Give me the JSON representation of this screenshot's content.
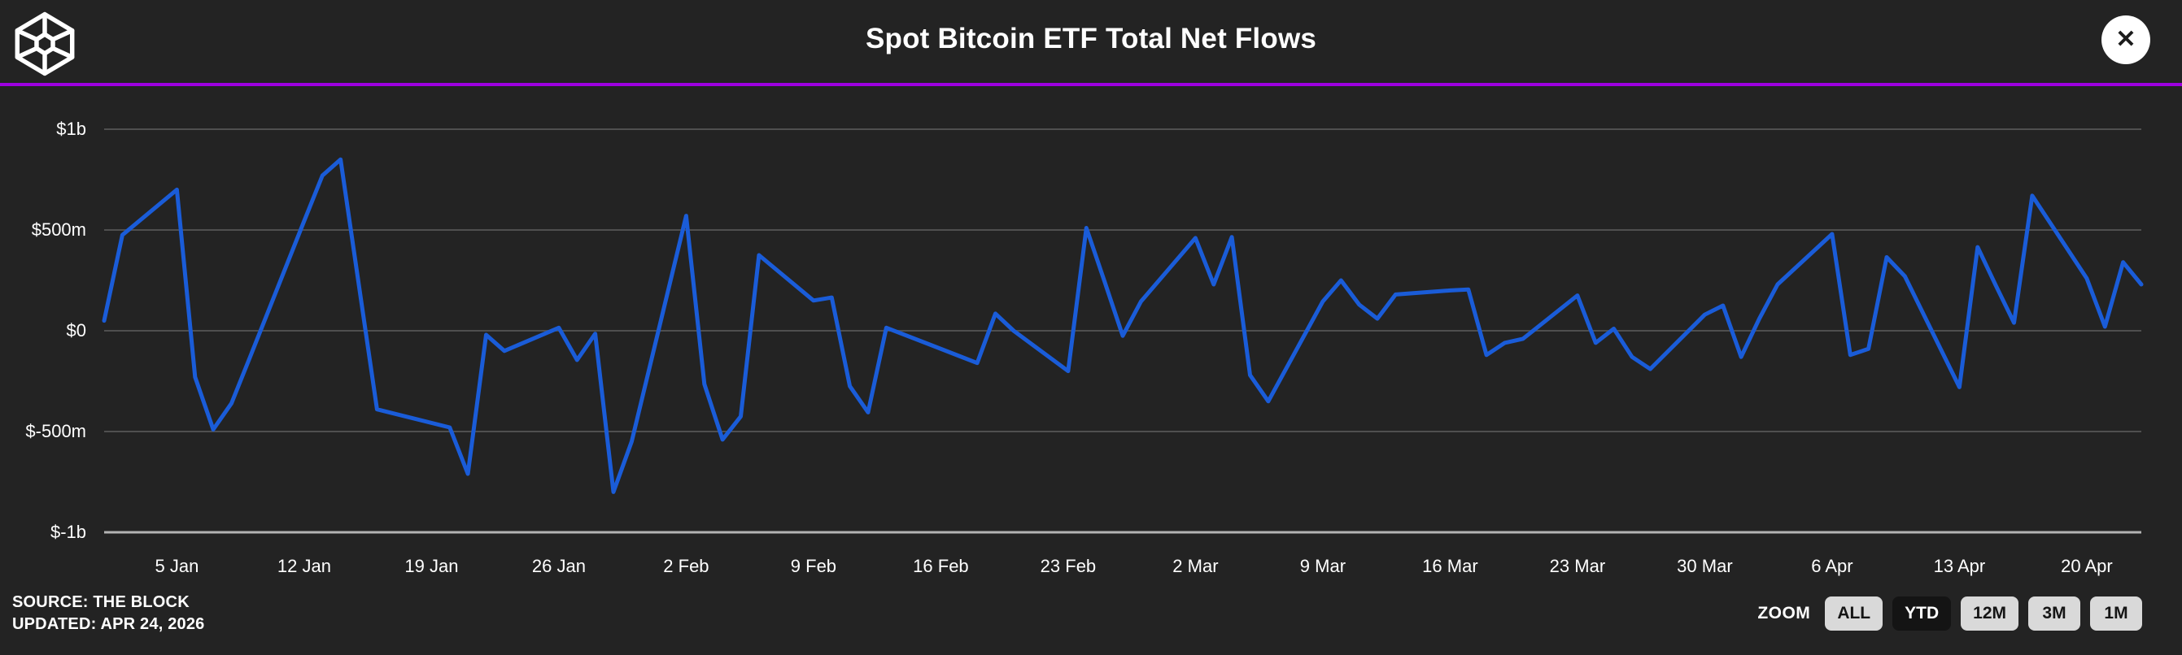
{
  "header": {
    "title": "Spot Bitcoin ETF Total Net Flows",
    "close_glyph": "✕"
  },
  "footer": {
    "source": "SOURCE: THE BLOCK",
    "updated": "UPDATED: APR 24, 2026"
  },
  "zoom": {
    "label": "ZOOM",
    "active": "YTD",
    "buttons": [
      {
        "label": "ALL"
      },
      {
        "label": "YTD"
      },
      {
        "label": "12M"
      },
      {
        "label": "3M"
      },
      {
        "label": "1M"
      }
    ]
  },
  "colors": {
    "background": "#232323",
    "accent_purple": "#9d00e0",
    "line_blue": "#1a5cd8",
    "grid": "#4f4f4f",
    "axis": "#b3b3b3",
    "text": "#ffffff",
    "button_bg": "#d9d9d9",
    "button_active_bg": "#141414"
  },
  "chart_data": {
    "type": "line",
    "title": "Spot Bitcoin ETF Total Net Flows",
    "xlabel": "",
    "ylabel": "",
    "unit": "$m",
    "ylim": [
      -1000,
      1000
    ],
    "grid": "horizontal",
    "legend": "none",
    "x_range": [
      "2026-01-01",
      "2026-04-23"
    ],
    "y_ticks": [
      {
        "label": "$1b",
        "value": 1000
      },
      {
        "label": "$500m",
        "value": 500
      },
      {
        "label": "$0",
        "value": 0
      },
      {
        "label": "$-500m",
        "value": -500
      },
      {
        "label": "$-1b",
        "value": -1000
      }
    ],
    "x_ticks": [
      {
        "label": "5 Jan",
        "day": 4
      },
      {
        "label": "12 Jan",
        "day": 11
      },
      {
        "label": "19 Jan",
        "day": 18
      },
      {
        "label": "26 Jan",
        "day": 25
      },
      {
        "label": "2 Feb",
        "day": 32
      },
      {
        "label": "9 Feb",
        "day": 39
      },
      {
        "label": "16 Feb",
        "day": 46
      },
      {
        "label": "23 Feb",
        "day": 53
      },
      {
        "label": "2 Mar",
        "day": 60
      },
      {
        "label": "9 Mar",
        "day": 67
      },
      {
        "label": "16 Mar",
        "day": 74
      },
      {
        "label": "23 Mar",
        "day": 81
      },
      {
        "label": "30 Mar",
        "day": 88
      },
      {
        "label": "6 Apr",
        "day": 95
      },
      {
        "label": "13 Apr",
        "day": 102
      },
      {
        "label": "20 Apr",
        "day": 109
      }
    ],
    "points": [
      [
        "2026-01-01",
        50
      ],
      [
        "2026-01-02",
        475
      ],
      [
        "2026-01-05",
        700
      ],
      [
        "2026-01-06",
        -230
      ],
      [
        "2026-01-07",
        -490
      ],
      [
        "2026-01-08",
        -360
      ],
      [
        "2026-01-09",
        -135
      ],
      [
        "2026-01-12",
        545
      ],
      [
        "2026-01-13",
        770
      ],
      [
        "2026-01-14",
        850
      ],
      [
        "2026-01-15",
        230
      ],
      [
        "2026-01-16",
        -390
      ],
      [
        "2026-01-20",
        -480
      ],
      [
        "2026-01-21",
        -710
      ],
      [
        "2026-01-22",
        -20
      ],
      [
        "2026-01-23",
        -100
      ],
      [
        "2026-01-26",
        15
      ],
      [
        "2026-01-27",
        -145
      ],
      [
        "2026-01-28",
        -15
      ],
      [
        "2026-01-29",
        -800
      ],
      [
        "2026-01-30",
        -550
      ],
      [
        "2026-02-02",
        570
      ],
      [
        "2026-02-03",
        -265
      ],
      [
        "2026-02-04",
        -540
      ],
      [
        "2026-02-05",
        -425
      ],
      [
        "2026-02-06",
        375
      ],
      [
        "2026-02-09",
        150
      ],
      [
        "2026-02-10",
        165
      ],
      [
        "2026-02-11",
        -275
      ],
      [
        "2026-02-12",
        -405
      ],
      [
        "2026-02-13",
        15
      ],
      [
        "2026-02-17",
        -125
      ],
      [
        "2026-02-18",
        -160
      ],
      [
        "2026-02-19",
        85
      ],
      [
        "2026-02-20",
        0
      ],
      [
        "2026-02-23",
        -200
      ],
      [
        "2026-02-24",
        510
      ],
      [
        "2026-02-25",
        245
      ],
      [
        "2026-02-26",
        -25
      ],
      [
        "2026-02-27",
        145
      ],
      [
        "2026-03-02",
        460
      ],
      [
        "2026-03-03",
        230
      ],
      [
        "2026-03-04",
        465
      ],
      [
        "2026-03-05",
        -220
      ],
      [
        "2026-03-06",
        -350
      ],
      [
        "2026-03-09",
        145
      ],
      [
        "2026-03-10",
        250
      ],
      [
        "2026-03-11",
        130
      ],
      [
        "2026-03-12",
        60
      ],
      [
        "2026-03-13",
        180
      ],
      [
        "2026-03-16",
        200
      ],
      [
        "2026-03-17",
        205
      ],
      [
        "2026-03-18",
        -120
      ],
      [
        "2026-03-19",
        -60
      ],
      [
        "2026-03-20",
        -40
      ],
      [
        "2026-03-23",
        175
      ],
      [
        "2026-03-24",
        -60
      ],
      [
        "2026-03-25",
        10
      ],
      [
        "2026-03-26",
        -130
      ],
      [
        "2026-03-27",
        -190
      ],
      [
        "2026-03-30",
        80
      ],
      [
        "2026-03-31",
        125
      ],
      [
        "2026-04-01",
        -130
      ],
      [
        "2026-04-02",
        60
      ],
      [
        "2026-04-03",
        230
      ],
      [
        "2026-04-06",
        480
      ],
      [
        "2026-04-07",
        -120
      ],
      [
        "2026-04-08",
        -90
      ],
      [
        "2026-04-09",
        365
      ],
      [
        "2026-04-10",
        270
      ],
      [
        "2026-04-13",
        -280
      ],
      [
        "2026-04-14",
        415
      ],
      [
        "2026-04-15",
        225
      ],
      [
        "2026-04-16",
        40
      ],
      [
        "2026-04-17",
        670
      ],
      [
        "2026-04-20",
        260
      ],
      [
        "2026-04-21",
        20
      ],
      [
        "2026-04-22",
        340
      ],
      [
        "2026-04-23",
        230
      ]
    ]
  }
}
